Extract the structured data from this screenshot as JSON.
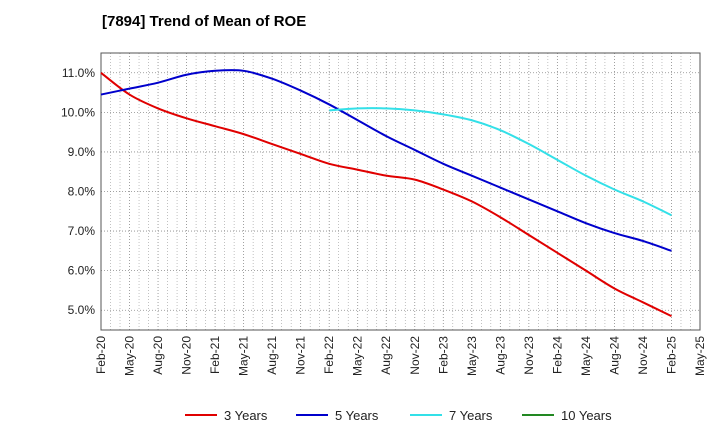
{
  "chart_data": {
    "type": "line",
    "title": "[7894]  Trend of Mean of ROE",
    "xlabel": "",
    "ylabel": "",
    "ylim": [
      4.5,
      11.5
    ],
    "y_ticks": [
      5.0,
      6.0,
      7.0,
      8.0,
      9.0,
      10.0,
      11.0
    ],
    "y_tick_labels": [
      "5.0%",
      "6.0%",
      "7.0%",
      "8.0%",
      "9.0%",
      "10.0%",
      "11.0%"
    ],
    "categories": [
      "Feb-20",
      "May-20",
      "Aug-20",
      "Nov-20",
      "Feb-21",
      "May-21",
      "Aug-21",
      "Nov-21",
      "Feb-22",
      "May-22",
      "Aug-22",
      "Nov-22",
      "Feb-23",
      "May-23",
      "Aug-23",
      "Nov-23",
      "Feb-24",
      "May-24",
      "Aug-24",
      "Nov-24",
      "Feb-25",
      "May-25"
    ],
    "grid": true,
    "legend_position": "bottom",
    "series": [
      {
        "name": "3 Years",
        "color": "#e00000",
        "values": [
          11.0,
          10.45,
          10.1,
          9.85,
          9.65,
          9.45,
          9.2,
          8.95,
          8.7,
          8.55,
          8.4,
          8.3,
          8.05,
          7.75,
          7.35,
          6.9,
          6.45,
          6.0,
          5.55,
          5.2,
          4.85,
          null
        ]
      },
      {
        "name": "5 Years",
        "color": "#0000cc",
        "values": [
          10.45,
          10.6,
          10.75,
          10.95,
          11.05,
          11.05,
          10.85,
          10.55,
          10.2,
          9.8,
          9.4,
          9.05,
          8.7,
          8.4,
          8.1,
          7.8,
          7.5,
          7.2,
          6.95,
          6.75,
          6.5,
          null
        ]
      },
      {
        "name": "7 Years",
        "color": "#33e0e8",
        "values": [
          null,
          null,
          null,
          null,
          null,
          null,
          null,
          null,
          10.05,
          10.1,
          10.1,
          10.05,
          9.95,
          9.8,
          9.55,
          9.2,
          8.8,
          8.4,
          8.05,
          7.75,
          7.4,
          null
        ]
      },
      {
        "name": "10 Years",
        "color": "#228822",
        "values": [
          null,
          null,
          null,
          null,
          null,
          null,
          null,
          null,
          null,
          null,
          null,
          null,
          null,
          null,
          null,
          null,
          null,
          null,
          null,
          null,
          null,
          null
        ]
      }
    ]
  }
}
